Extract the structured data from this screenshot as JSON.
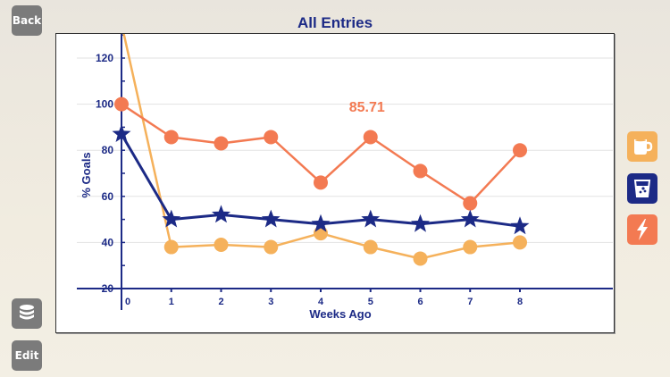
{
  "buttons": {
    "back_label": "Back",
    "edit_label": "Edit",
    "database_icon": "database-icon"
  },
  "categories": [
    {
      "name": "coffee",
      "icon": "coffee-mug-icon",
      "color": "#f5b15b"
    },
    {
      "name": "water",
      "icon": "water-glass-icon",
      "color": "#1c2a86"
    },
    {
      "name": "energy",
      "icon": "lightning-bolt-icon",
      "color": "#f37a52"
    }
  ],
  "chart_data": {
    "type": "line",
    "title": "All Entries",
    "xlabel": "Weeks Ago",
    "ylabel": "% Goals",
    "x": [
      0,
      1,
      2,
      3,
      4,
      5,
      6,
      7,
      8
    ],
    "x_ticks": [
      "0",
      "1",
      "2",
      "3",
      "4",
      "5",
      "6",
      "7",
      "8"
    ],
    "y_ticks": [
      "20",
      "40",
      "60",
      "80",
      "100",
      "120"
    ],
    "ylim": [
      20,
      130
    ],
    "grid": true,
    "annotation": {
      "text": "85.71",
      "x": 5,
      "color": "#f37a52"
    },
    "series": [
      {
        "name": "energy",
        "color": "#f37a52",
        "marker": "circle",
        "values": [
          100,
          85.71,
          83,
          85.71,
          66,
          85.71,
          71,
          57,
          80
        ]
      },
      {
        "name": "water",
        "color": "#1c2a86",
        "marker": "star",
        "values": [
          87,
          50,
          52,
          50,
          48,
          50,
          48,
          50,
          47
        ]
      },
      {
        "name": "coffee",
        "color": "#f5b15b",
        "marker": "circle",
        "values": [
          135,
          38,
          39,
          38,
          44,
          38,
          33,
          38,
          40
        ]
      }
    ]
  }
}
